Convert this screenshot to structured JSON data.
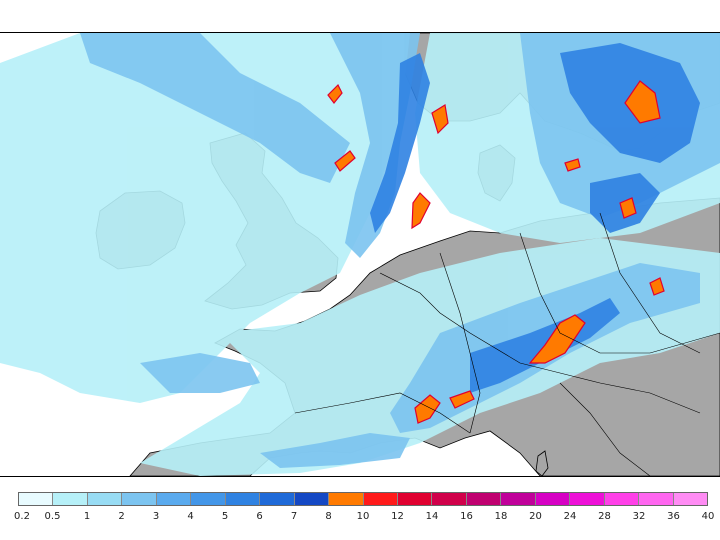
{
  "map": {
    "kind": "precipitation forecast map",
    "region": "Western and Central Europe",
    "land_color": "#a6a6a6",
    "sea_color": "#ffffff",
    "coastline_color": "#000000"
  },
  "legend": {
    "labels": [
      "0.2",
      "0.5",
      "1",
      "2",
      "3",
      "4",
      "5",
      "6",
      "7",
      "8",
      "10",
      "12",
      "14",
      "16",
      "18",
      "20",
      "24",
      "28",
      "32",
      "36",
      "40"
    ],
    "colors": [
      "#e8fbff",
      "#b6f0f8",
      "#98dcf4",
      "#7cc4f0",
      "#5aaaee",
      "#4396e8",
      "#2f82e2",
      "#1f6ad8",
      "#1448c4",
      "#ff7a00",
      "#ff1a1a",
      "#e00030",
      "#d0004a",
      "#c00070",
      "#c0009a",
      "#d600c4",
      "#ee10d8",
      "#ff40e8",
      "#ff66f0",
      "#ff8cf4"
    ]
  }
}
